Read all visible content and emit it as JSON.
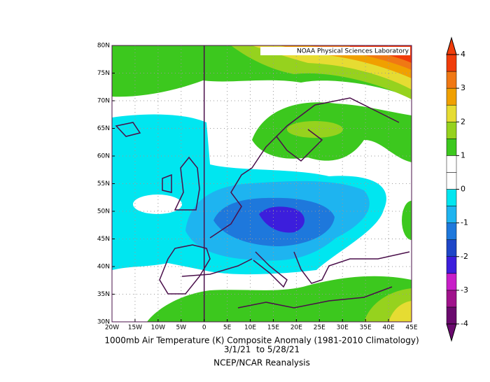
{
  "header": {
    "credit": "NOAA Physical Sciences Laboratory"
  },
  "map": {
    "lon_range": [
      -20,
      45
    ],
    "lat_range": [
      30,
      80
    ],
    "lon_ticks": [
      {
        "value": -20,
        "label": "20W"
      },
      {
        "value": -15,
        "label": "15W"
      },
      {
        "value": -10,
        "label": "10W"
      },
      {
        "value": -5,
        "label": "5W"
      },
      0,
      {
        "value": 5,
        "label": "5E"
      },
      {
        "value": 10,
        "label": "10E"
      },
      {
        "value": 15,
        "label": "15E"
      },
      {
        "value": 20,
        "label": "20E"
      },
      {
        "value": 25,
        "label": "25E"
      },
      {
        "value": 30,
        "label": "30E"
      },
      {
        "value": 35,
        "label": "35E"
      },
      {
        "value": 40,
        "label": "40E"
      },
      {
        "value": 45,
        "label": "45E"
      }
    ],
    "lat_ticks": [
      {
        "value": 30,
        "label": "30N"
      },
      {
        "value": 35,
        "label": "35N"
      },
      {
        "value": 40,
        "label": "40N"
      },
      {
        "value": 45,
        "label": "45N"
      },
      {
        "value": 50,
        "label": "50N"
      },
      {
        "value": 55,
        "label": "55N"
      },
      {
        "value": 60,
        "label": "60N"
      },
      {
        "value": 65,
        "label": "65N"
      },
      {
        "value": 70,
        "label": "70N"
      },
      {
        "value": 75,
        "label": "75N"
      },
      {
        "value": 80,
        "label": "80N"
      }
    ],
    "grid": true
  },
  "colorbar": {
    "range": [
      -4,
      4
    ],
    "ticks": [
      -4,
      -3,
      -2,
      -1,
      0,
      1,
      2,
      3,
      4
    ],
    "colors": [
      "#6a0a6e",
      "#a0128c",
      "#c81ec8",
      "#3c1edc",
      "#1e46c8",
      "#1e78dc",
      "#1eb4f0",
      "#00e6f0",
      "#ffffff",
      "#ffffff",
      "#3cc81e",
      "#96d21e",
      "#e6dc32",
      "#f0a000",
      "#f07814",
      "#f03c0a"
    ]
  },
  "footer": {
    "title": "1000mb Air Temperature (K) Composite Anomaly (1981-2010 Climatology)",
    "dates": "3/1/21  to 5/28/21",
    "source": "NCEP/NCAR Reanalysis"
  }
}
